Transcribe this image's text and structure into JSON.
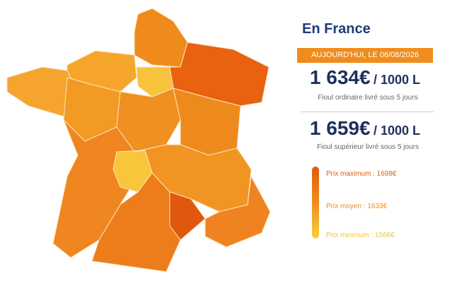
{
  "panel": {
    "title": "En France",
    "date": "AUJOURD'HUI, LE 06/08/2026",
    "offers": [
      {
        "price": "1 634€",
        "unit": "/ 1000 L",
        "description": "Fioul ordinaire livré sous 5 jours"
      },
      {
        "price": "1 659€",
        "unit": "/ 1000 L",
        "description": "Fioul supérieur livré sous 5 jours"
      }
    ],
    "legend": [
      "Prix maximum : 1698€",
      "Prix moyen : 1633€",
      "Prix minimum : 1566€"
    ]
  }
}
